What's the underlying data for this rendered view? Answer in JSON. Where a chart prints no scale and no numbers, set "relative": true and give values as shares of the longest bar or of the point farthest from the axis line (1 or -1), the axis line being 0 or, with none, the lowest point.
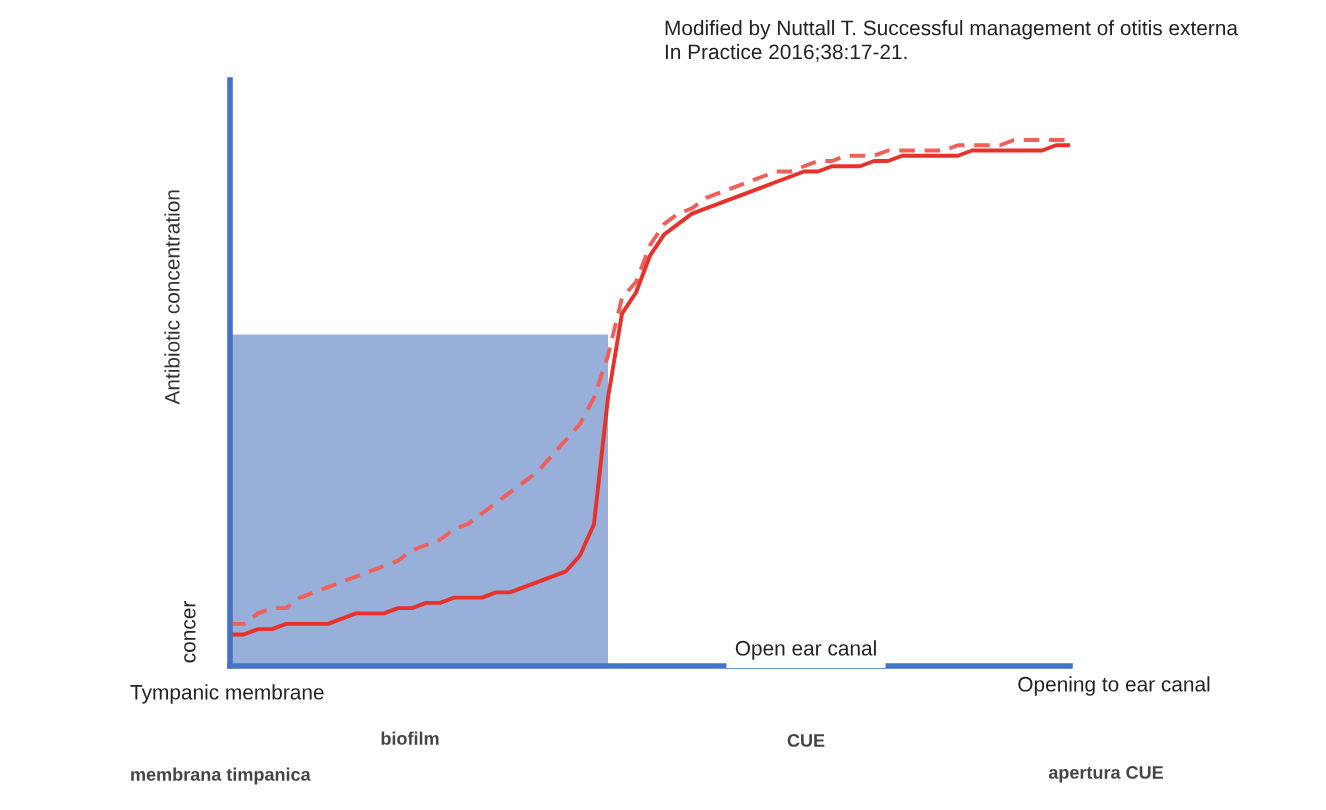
{
  "chart_data": {
    "type": "line",
    "relative": true,
    "ylabel": "Antibiotic concentration",
    "categories": [
      null,
      null,
      null,
      null,
      null,
      null,
      null,
      null,
      null,
      null,
      null,
      null,
      null,
      null,
      null,
      null,
      null,
      null,
      null,
      null,
      null,
      null,
      null,
      null,
      null,
      null,
      null,
      null,
      null,
      null,
      null,
      null,
      null,
      null,
      null,
      null,
      null,
      null,
      null,
      null,
      null,
      null,
      null,
      null,
      null,
      null,
      null,
      null,
      null,
      null,
      null,
      null,
      null,
      null,
      null,
      null,
      null,
      null,
      null,
      null,
      null
    ],
    "series": [
      {
        "type": "area",
        "color": "#98afd9",
        "values": [
          0.63,
          0.63,
          0.63,
          0.63,
          0.63,
          0.63,
          0.63,
          0.63,
          0.63,
          0.63,
          0.63,
          0.63,
          0.63,
          0.63,
          0.63,
          0.63,
          0.63,
          0.63,
          0.63,
          0.63,
          0.63,
          0.63,
          0.63,
          0.63,
          0.63,
          0.63,
          0.63,
          0.63,
          null,
          null,
          null,
          null,
          null,
          null,
          null,
          null,
          null,
          null,
          null,
          null,
          null,
          null,
          null,
          null,
          null,
          null,
          null,
          null,
          null,
          null,
          null,
          null,
          null,
          null,
          null,
          null,
          null,
          null,
          null,
          null,
          null
        ]
      },
      {
        "color": "#f0605a",
        "line_style": "dashed",
        "values": [
          0.08,
          0.08,
          0.1,
          0.11,
          0.11,
          0.13,
          0.14,
          0.15,
          0.16,
          0.17,
          0.18,
          0.19,
          0.2,
          0.22,
          0.23,
          0.24,
          0.26,
          0.27,
          0.29,
          0.31,
          0.33,
          0.35,
          0.37,
          0.4,
          0.43,
          0.46,
          0.51,
          0.59,
          0.7,
          0.73,
          0.8,
          0.84,
          0.86,
          0.87,
          0.89,
          0.9,
          0.91,
          0.92,
          0.93,
          0.94,
          0.94,
          0.95,
          0.96,
          0.96,
          0.97,
          0.97,
          0.97,
          0.98,
          0.98,
          0.98,
          0.98,
          0.98,
          0.99,
          0.99,
          0.99,
          0.99,
          1.0,
          1.0,
          1.0,
          1.0,
          1.0
        ]
      },
      {
        "color": "#e8312a",
        "line_style": "solid",
        "values": [
          0.06,
          0.06,
          0.07,
          0.07,
          0.08,
          0.08,
          0.08,
          0.08,
          0.09,
          0.1,
          0.1,
          0.1,
          0.11,
          0.11,
          0.12,
          0.12,
          0.13,
          0.13,
          0.13,
          0.14,
          0.14,
          0.15,
          0.16,
          0.17,
          0.18,
          0.21,
          0.27,
          0.51,
          0.67,
          0.71,
          0.78,
          0.82,
          0.84,
          0.86,
          0.87,
          0.88,
          0.89,
          0.9,
          0.91,
          0.92,
          0.93,
          0.94,
          0.94,
          0.95,
          0.95,
          0.95,
          0.96,
          0.96,
          0.97,
          0.97,
          0.97,
          0.97,
          0.97,
          0.98,
          0.98,
          0.98,
          0.98,
          0.98,
          0.98,
          0.99,
          0.99
        ]
      }
    ],
    "annotations": [
      "Modified by Nuttall T. Successful management of otitis externa\nIn Practice 2016;38:17-21.",
      "concer",
      "Tympanic membrane",
      "biofilm",
      "CUE",
      "Open ear canal",
      "Opening to ear canal",
      "membrana timpanica",
      "apertura CUE"
    ],
    "legend": false
  }
}
